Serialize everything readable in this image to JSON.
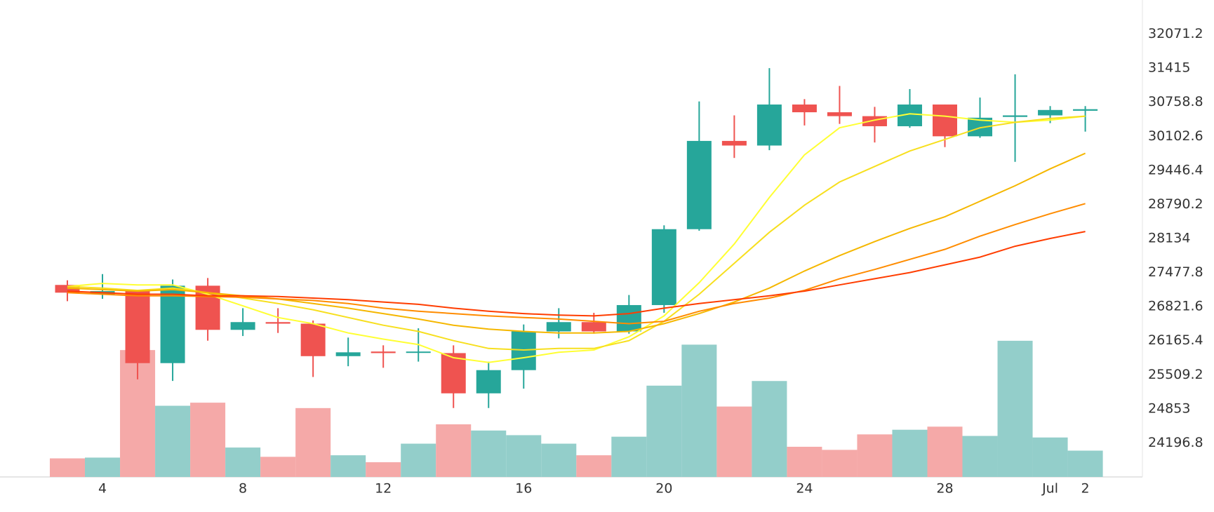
{
  "chart_data": {
    "type": "candlestick",
    "categories": [
      null,
      "4",
      null,
      null,
      null,
      "8",
      null,
      null,
      null,
      "12",
      null,
      null,
      null,
      "16",
      null,
      null,
      null,
      "20",
      null,
      null,
      null,
      "24",
      null,
      null,
      null,
      "28",
      null,
      null,
      "Jul",
      "2"
    ],
    "open": [
      27239,
      27060,
      27120,
      25733,
      27224,
      26374,
      26523,
      26493,
      25867,
      25956,
      25941,
      25926,
      25151,
      25598,
      26344,
      26523,
      26344,
      26851,
      28313,
      30013,
      29924,
      30714,
      30565,
      30490,
      30296,
      30714,
      30102,
      30475,
      30505,
      30594
    ],
    "high": [
      27328,
      27448,
      27120,
      27343,
      27373,
      26791,
      26791,
      26553,
      26225,
      26076,
      26404,
      26076,
      25762,
      26478,
      26791,
      26702,
      27045,
      28387,
      30774,
      30505,
      31415,
      30818,
      31072,
      30669,
      31012,
      30714,
      30848,
      31296,
      30684,
      30684
    ],
    "low": [
      26926,
      26971,
      25420,
      25390,
      26165,
      26255,
      26314,
      25465,
      25673,
      25643,
      25762,
      24868,
      24868,
      25241,
      26210,
      26300,
      26300,
      26702,
      28283,
      29685,
      29834,
      30311,
      30341,
      29983,
      30266,
      29894,
      30073,
      29610,
      30356,
      30192
    ],
    "close": [
      27090,
      27120,
      25733,
      27224,
      26374,
      26523,
      26493,
      25867,
      25941,
      25926,
      25956,
      25151,
      25598,
      26344,
      26523,
      26344,
      26851,
      28313,
      30013,
      29924,
      30714,
      30565,
      30490,
      30296,
      30714,
      30102,
      30460,
      30505,
      30609,
      30624
    ],
    "volume": [
      24,
      25,
      164,
      92,
      96,
      38,
      26,
      89,
      28,
      19,
      43,
      68,
      60,
      54,
      43,
      28,
      52,
      118,
      171,
      91,
      124,
      39,
      35,
      55,
      61,
      65,
      53,
      176,
      51,
      34
    ],
    "up_color": "#26a69a",
    "down_color": "#ef5350",
    "volume_up_color": "#93ceca",
    "volume_down_color": "#f5a9a8",
    "moving_averages": [
      {
        "color": "#ffff33",
        "values": [
          27209,
          27268,
          27239,
          27239,
          27060,
          26836,
          26612,
          26493,
          26314,
          26195,
          26091,
          25837,
          25747,
          25837,
          25941,
          25986,
          26240,
          26642,
          27283,
          28029,
          28924,
          29745,
          30266,
          30415,
          30535,
          30490,
          30415,
          30371,
          30415,
          30490
        ]
      },
      {
        "color": "#f7df1e",
        "values": [
          27209,
          27179,
          27134,
          27179,
          27090,
          26985,
          26881,
          26761,
          26612,
          26463,
          26344,
          26165,
          26016,
          25986,
          26016,
          26016,
          26165,
          26538,
          27060,
          27656,
          28253,
          28775,
          29222,
          29521,
          29819,
          30042,
          30266,
          30371,
          30445,
          30490
        ]
      },
      {
        "color": "#f5b700",
        "values": [
          27179,
          27149,
          27119,
          27149,
          27090,
          27030,
          26970,
          26881,
          26791,
          26687,
          26582,
          26463,
          26389,
          26344,
          26314,
          26314,
          26344,
          26493,
          26687,
          26910,
          27179,
          27507,
          27805,
          28074,
          28327,
          28551,
          28850,
          29148,
          29476,
          29774
        ]
      },
      {
        "color": "#ff8c00",
        "values": [
          27090,
          27060,
          27030,
          27030,
          27015,
          27000,
          26970,
          26940,
          26881,
          26791,
          26731,
          26687,
          26642,
          26612,
          26582,
          26538,
          26493,
          26538,
          26731,
          26881,
          26985,
          27134,
          27358,
          27537,
          27731,
          27925,
          28178,
          28402,
          28611,
          28805
        ]
      },
      {
        "color": "#ff3d00",
        "values": [
          27119,
          27090,
          27060,
          27060,
          27030,
          27030,
          27015,
          26985,
          26955,
          26910,
          26866,
          26791,
          26731,
          26687,
          26657,
          26642,
          26687,
          26791,
          26881,
          26955,
          27030,
          27119,
          27239,
          27358,
          27477,
          27626,
          27775,
          27984,
          28134,
          28268
        ]
      }
    ],
    "ylim": [
      23540.6,
      32727.4
    ],
    "yticks": [
      32071.2,
      31415,
      30758.8,
      30102.6,
      29446.4,
      28790.2,
      28134,
      27477.8,
      26821.6,
      26165.4,
      25509.2,
      24853,
      24196.8
    ],
    "grid": true
  }
}
